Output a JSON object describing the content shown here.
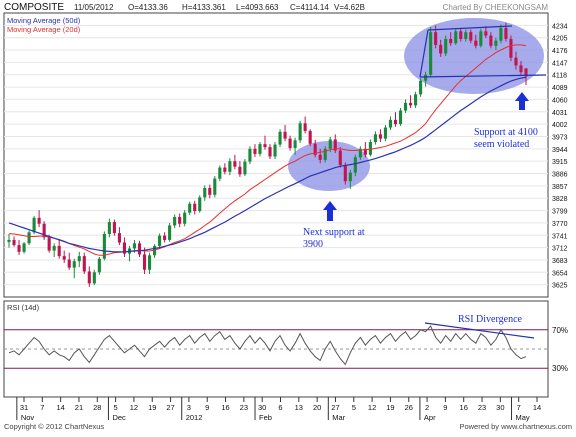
{
  "header": {
    "symbol": "COMPOSITE",
    "date": "11/05/2012",
    "open": "O=4133.36",
    "high": "H=4133.361",
    "low": "L=4093.663",
    "close": "C=4114.14",
    "volume": "V=4.62B",
    "credit": "Charted By CHEEKONGSAM"
  },
  "footer": {
    "copyright": "Copyright © 2012 ChartNexus",
    "powered": "Powered by www.chartnexus.com"
  },
  "colors": {
    "up": "#1a8a3a",
    "down": "#c0154f",
    "ma50": "#2b32b2",
    "ma20": "#e53030",
    "rsi": "#555555",
    "rsi_bands": "#7a1b55",
    "ellipse": "#6b72e0",
    "arrow": "#1c2fd6"
  },
  "chart_data": [
    {
      "type": "candlestick",
      "title": "",
      "legend": [
        "Moving Average (50d)",
        "Moving Average (20d)"
      ],
      "legend_placement": "top-left",
      "y_ticks": [
        4234,
        4205,
        4176,
        4147,
        4118,
        4089,
        4060,
        4031,
        4002,
        3973,
        3944,
        3915,
        3886,
        3857,
        3828,
        3799,
        3770,
        3741,
        3712,
        3683,
        3654,
        3625
      ],
      "ylim": [
        3596,
        4263
      ],
      "x_tick_labels": [
        "31",
        "7",
        "14",
        "21",
        "28",
        "5",
        "12",
        "19",
        "27",
        "3",
        "9",
        "16",
        "23",
        "30",
        "6",
        "13",
        "20",
        "27",
        "5",
        "12",
        "19",
        "26",
        "2",
        "9",
        "16",
        "23",
        "30",
        "7",
        "14"
      ],
      "month_labels": [
        "Nov",
        "Dec",
        "2012",
        "Feb",
        "Mar",
        "Apr",
        "May"
      ],
      "candles": [
        [
          3725,
          3744,
          3712,
          3730
        ],
        [
          3730,
          3738,
          3714,
          3718
        ],
        [
          3718,
          3730,
          3695,
          3702
        ],
        [
          3702,
          3725,
          3698,
          3722
        ],
        [
          3722,
          3752,
          3718,
          3748
        ],
        [
          3748,
          3786,
          3744,
          3782
        ],
        [
          3782,
          3800,
          3760,
          3768
        ],
        [
          3768,
          3774,
          3730,
          3736
        ],
        [
          3736,
          3742,
          3700,
          3705
        ],
        [
          3705,
          3722,
          3690,
          3716
        ],
        [
          3716,
          3730,
          3686,
          3692
        ],
        [
          3692,
          3705,
          3676,
          3684
        ],
        [
          3684,
          3700,
          3660,
          3665
        ],
        [
          3665,
          3686,
          3640,
          3680
        ],
        [
          3680,
          3702,
          3666,
          3692
        ],
        [
          3692,
          3700,
          3650,
          3656
        ],
        [
          3656,
          3668,
          3620,
          3628
        ],
        [
          3628,
          3660,
          3624,
          3654
        ],
        [
          3654,
          3690,
          3648,
          3686
        ],
        [
          3686,
          3750,
          3682,
          3744
        ],
        [
          3744,
          3780,
          3736,
          3772
        ],
        [
          3772,
          3778,
          3740,
          3746
        ],
        [
          3746,
          3760,
          3718,
          3724
        ],
        [
          3724,
          3736,
          3690,
          3698
        ],
        [
          3698,
          3716,
          3680,
          3710
        ],
        [
          3710,
          3730,
          3700,
          3722
        ],
        [
          3722,
          3728,
          3690,
          3696
        ],
        [
          3696,
          3712,
          3650,
          3660
        ],
        [
          3660,
          3700,
          3650,
          3694
        ],
        [
          3694,
          3720,
          3688,
          3716
        ],
        [
          3716,
          3745,
          3710,
          3740
        ],
        [
          3740,
          3748,
          3724,
          3730
        ],
        [
          3730,
          3770,
          3726,
          3764
        ],
        [
          3764,
          3790,
          3758,
          3784
        ],
        [
          3784,
          3792,
          3760,
          3768
        ],
        [
          3768,
          3800,
          3762,
          3794
        ],
        [
          3794,
          3820,
          3788,
          3815
        ],
        [
          3815,
          3822,
          3790,
          3798
        ],
        [
          3798,
          3835,
          3794,
          3830
        ],
        [
          3830,
          3858,
          3822,
          3852
        ],
        [
          3852,
          3860,
          3828,
          3836
        ],
        [
          3836,
          3880,
          3830,
          3874
        ],
        [
          3874,
          3905,
          3868,
          3900
        ],
        [
          3900,
          3910,
          3884,
          3890
        ],
        [
          3890,
          3922,
          3882,
          3915
        ],
        [
          3915,
          3930,
          3896,
          3902
        ],
        [
          3902,
          3915,
          3878,
          3884
        ],
        [
          3884,
          3920,
          3880,
          3914
        ],
        [
          3914,
          3950,
          3908,
          3944
        ],
        [
          3944,
          3955,
          3925,
          3932
        ],
        [
          3932,
          3960,
          3926,
          3955
        ],
        [
          3955,
          3975,
          3942,
          3948
        ],
        [
          3948,
          3955,
          3920,
          3926
        ],
        [
          3926,
          3960,
          3920,
          3954
        ],
        [
          3954,
          3990,
          3948,
          3984
        ],
        [
          3984,
          4000,
          3962,
          3968
        ],
        [
          3968,
          3975,
          3940,
          3946
        ],
        [
          3946,
          3970,
          3930,
          3964
        ],
        [
          3964,
          4010,
          3958,
          4004
        ],
        [
          4004,
          4020,
          3980,
          3986
        ],
        [
          3986,
          3990,
          3950,
          3956
        ],
        [
          3956,
          3965,
          3924,
          3930
        ],
        [
          3930,
          3944,
          3910,
          3918
        ],
        [
          3918,
          3950,
          3912,
          3944
        ],
        [
          3944,
          3972,
          3936,
          3966
        ],
        [
          3966,
          3978,
          3934,
          3940
        ],
        [
          3940,
          3948,
          3900,
          3906
        ],
        [
          3906,
          3912,
          3860,
          3868
        ],
        [
          3868,
          3895,
          3850,
          3888
        ],
        [
          3888,
          3930,
          3880,
          3924
        ],
        [
          3924,
          3950,
          3918,
          3944
        ],
        [
          3944,
          3960,
          3924,
          3930
        ],
        [
          3930,
          3966,
          3926,
          3960
        ],
        [
          3960,
          3985,
          3954,
          3978
        ],
        [
          3978,
          3990,
          3960,
          3968
        ],
        [
          3968,
          4000,
          3962,
          3994
        ],
        [
          3994,
          4020,
          3988,
          4012
        ],
        [
          4012,
          4030,
          3996,
          4002
        ],
        [
          4002,
          4040,
          3998,
          4034
        ],
        [
          4034,
          4060,
          4028,
          4052
        ],
        [
          4052,
          4070,
          4040,
          4046
        ],
        [
          4046,
          4078,
          4040,
          4072
        ],
        [
          4072,
          4110,
          4066,
          4104
        ],
        [
          4104,
          4125,
          4090,
          4118
        ],
        [
          4118,
          4230,
          4112,
          4218
        ],
        [
          4218,
          4234,
          4180,
          4188
        ],
        [
          4188,
          4200,
          4160,
          4168
        ],
        [
          4168,
          4210,
          4162,
          4202
        ],
        [
          4202,
          4218,
          4186,
          4192
        ],
        [
          4192,
          4226,
          4188,
          4220
        ],
        [
          4220,
          4228,
          4196,
          4202
        ],
        [
          4202,
          4224,
          4196,
          4218
        ],
        [
          4218,
          4224,
          4192,
          4198
        ],
        [
          4198,
          4212,
          4180,
          4186
        ],
        [
          4186,
          4226,
          4182,
          4220
        ],
        [
          4220,
          4232,
          4204,
          4210
        ],
        [
          4210,
          4218,
          4180,
          4186
        ],
        [
          4186,
          4205,
          4176,
          4198
        ],
        [
          4198,
          4236,
          4192,
          4228
        ],
        [
          4228,
          4240,
          4196,
          4202
        ],
        [
          4202,
          4210,
          4150,
          4158
        ],
        [
          4158,
          4172,
          4130,
          4140
        ],
        [
          4140,
          4150,
          4118,
          4124
        ],
        [
          4133,
          4133,
          4094,
          4114
        ]
      ],
      "ma20": [
        3745,
        3744,
        3742,
        3740,
        3738,
        3738,
        3739,
        3739,
        3737,
        3734,
        3731,
        3727,
        3722,
        3717,
        3713,
        3709,
        3703,
        3697,
        3694,
        3694,
        3697,
        3700,
        3701,
        3702,
        3703,
        3705,
        3705,
        3704,
        3704,
        3706,
        3710,
        3714,
        3719,
        3724,
        3728,
        3733,
        3740,
        3748,
        3755,
        3764,
        3772,
        3782,
        3793,
        3803,
        3813,
        3822,
        3830,
        3838,
        3848,
        3856,
        3864,
        3872,
        3880,
        3888,
        3896,
        3904,
        3910,
        3915,
        3922,
        3928,
        3932,
        3934,
        3936,
        3938,
        3942,
        3944,
        3944,
        3942,
        3940,
        3940,
        3941,
        3942,
        3943,
        3945,
        3947,
        3950,
        3954,
        3958,
        3962,
        3968,
        3975,
        3982,
        3992,
        4003,
        4020,
        4036,
        4050,
        4064,
        4078,
        4092,
        4104,
        4114,
        4124,
        4134,
        4144,
        4154,
        4162,
        4170,
        4176,
        4182,
        4186,
        4188,
        4188,
        4186
      ],
      "ma50": [
        3770,
        3766,
        3762,
        3758,
        3754,
        3750,
        3746,
        3742,
        3738,
        3734,
        3730,
        3726,
        3722,
        3719,
        3716,
        3713,
        3710,
        3708,
        3706,
        3704,
        3703,
        3702,
        3702,
        3702,
        3703,
        3704,
        3705,
        3706,
        3708,
        3710,
        3712,
        3715,
        3718,
        3721,
        3725,
        3729,
        3733,
        3738,
        3743,
        3748,
        3754,
        3760,
        3766,
        3772,
        3779,
        3786,
        3792,
        3799,
        3806,
        3813,
        3820,
        3827,
        3833,
        3839,
        3845,
        3851,
        3857,
        3862,
        3868,
        3874,
        3880,
        3884,
        3888,
        3892,
        3896,
        3900,
        3903,
        3905,
        3907,
        3909,
        3912,
        3915,
        3918,
        3921,
        3925,
        3929,
        3933,
        3937,
        3942,
        3947,
        3952,
        3958,
        3964,
        3971,
        3980,
        3989,
        3998,
        4007,
        4016,
        4025,
        4034,
        4042,
        4050,
        4058,
        4066,
        4073,
        4080,
        4086,
        4092,
        4098,
        4103,
        4107,
        4110,
        4112
      ]
    },
    {
      "type": "line",
      "title": "RSI (14d)",
      "y_ticks": [
        "70%",
        "30%"
      ],
      "ylim": [
        0,
        100
      ],
      "bands": [
        30,
        50,
        70
      ],
      "values": [
        46,
        48,
        44,
        50,
        56,
        62,
        58,
        50,
        44,
        48,
        44,
        42,
        38,
        46,
        50,
        42,
        36,
        44,
        52,
        60,
        64,
        58,
        52,
        46,
        50,
        54,
        48,
        42,
        50,
        54,
        58,
        52,
        58,
        62,
        54,
        60,
        64,
        56,
        62,
        66,
        58,
        64,
        68,
        60,
        64,
        56,
        50,
        58,
        64,
        56,
        62,
        56,
        48,
        58,
        64,
        54,
        48,
        56,
        66,
        56,
        48,
        42,
        38,
        50,
        58,
        48,
        40,
        34,
        46,
        56,
        62,
        54,
        60,
        64,
        56,
        62,
        66,
        58,
        64,
        68,
        60,
        64,
        70,
        68,
        74,
        62,
        56,
        64,
        58,
        66,
        60,
        66,
        60,
        56,
        66,
        62,
        54,
        60,
        70,
        62,
        50,
        44,
        40,
        42
      ]
    }
  ],
  "annotations": {
    "support_4100_line1": "Support at 4100",
    "support_4100_line2": "seem violated",
    "next_support_line1": "Next support at",
    "next_support_line2": "3900",
    "rsi_divergence": "RSI Divergence"
  }
}
